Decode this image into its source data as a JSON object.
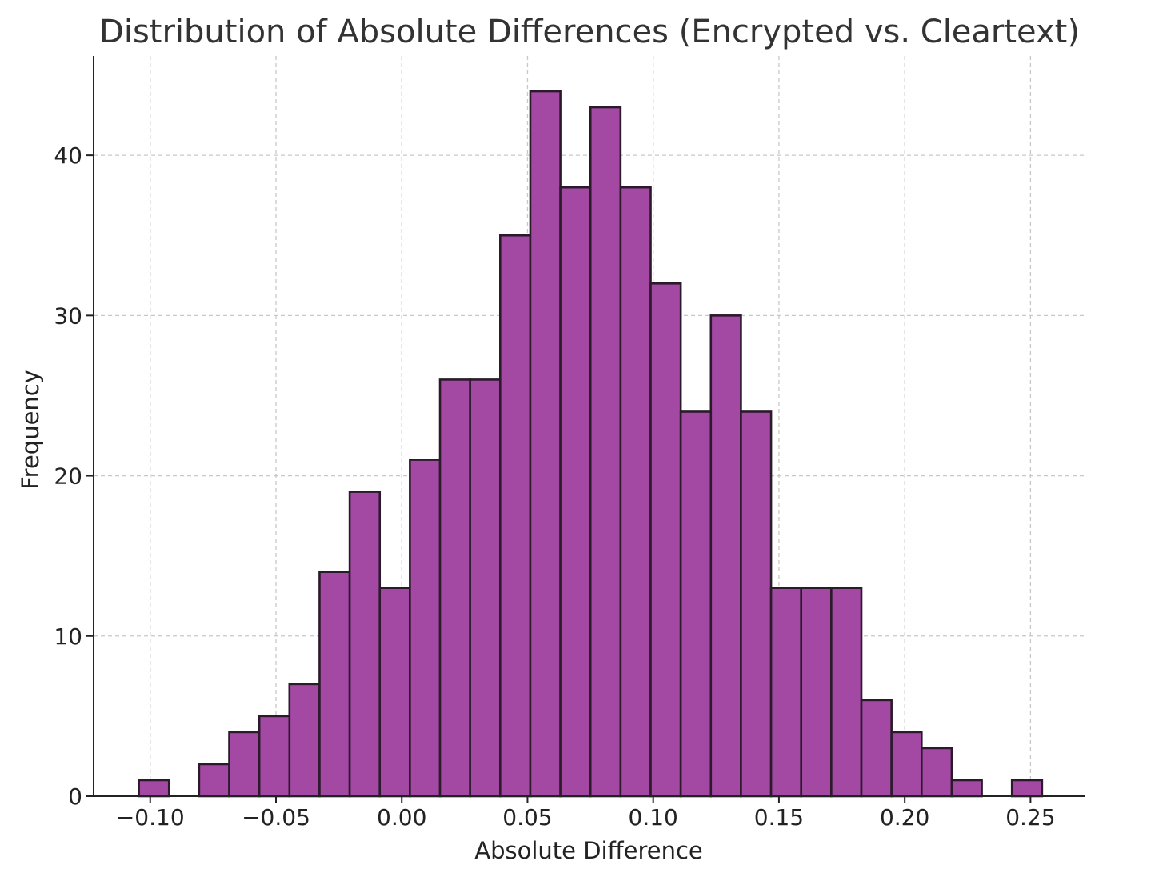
{
  "chart_data": {
    "type": "bar",
    "title": "Distribution of Absolute Differences (Encrypted vs. Cleartext)",
    "xlabel": "Absolute Difference",
    "ylabel": "Frequency",
    "xlim": [
      -0.1225,
      0.2715
    ],
    "ylim": [
      0,
      46.2
    ],
    "grid": true,
    "bar_color": "#a349a4",
    "edge_color": "#2a1a2a",
    "x_ticks": [
      -0.1,
      -0.05,
      0.0,
      0.05,
      0.1,
      0.15,
      0.2,
      0.25
    ],
    "x_tick_labels": [
      "−0.10",
      "−0.05",
      "0.00",
      "0.05",
      "0.10",
      "0.15",
      "0.20",
      "0.25"
    ],
    "y_ticks": [
      0,
      10,
      20,
      30,
      40
    ],
    "y_tick_labels": [
      "0",
      "10",
      "20",
      "30",
      "40"
    ],
    "bin_start": -0.1045,
    "bin_width": 0.01197,
    "values": [
      1,
      0,
      2,
      4,
      5,
      7,
      14,
      19,
      13,
      21,
      26,
      26,
      35,
      44,
      38,
      43,
      38,
      32,
      24,
      30,
      24,
      13,
      13,
      13,
      6,
      4,
      3,
      1,
      0,
      1
    ]
  }
}
